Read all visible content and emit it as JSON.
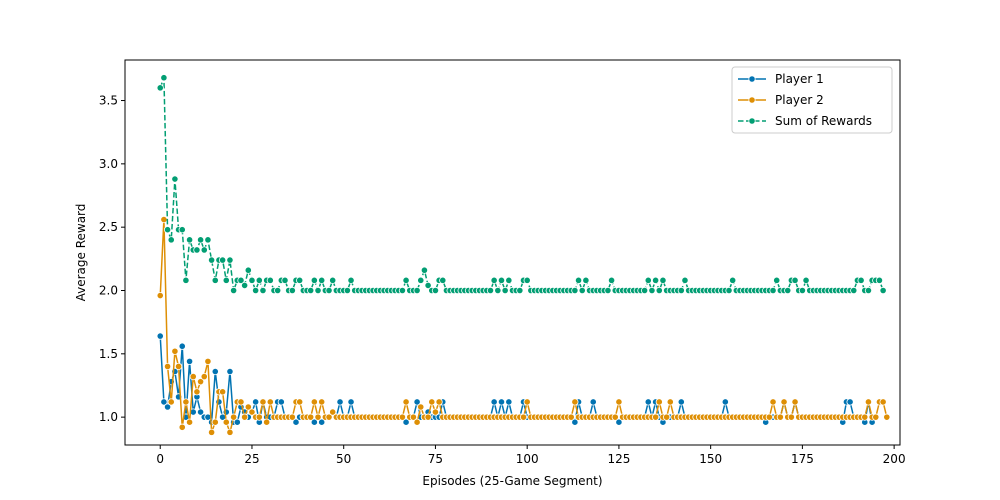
{
  "chart_data": {
    "type": "line",
    "title": "",
    "xlabel": "Episodes (25-Game Segment)",
    "ylabel": "Average Reward",
    "xlim": [
      -9.6,
      201.6
    ],
    "ylim": [
      0.78,
      3.82
    ],
    "x_ticks": [
      0,
      25,
      50,
      75,
      100,
      125,
      150,
      175,
      200
    ],
    "x_tick_labels": [
      "0",
      "25",
      "50",
      "75",
      "100",
      "125",
      "150",
      "175",
      "200"
    ],
    "y_ticks": [
      1.0,
      1.5,
      2.0,
      2.5,
      3.0,
      3.5
    ],
    "y_tick_labels": [
      "1.0",
      "1.5",
      "2.0",
      "2.5",
      "3.0",
      "3.5"
    ],
    "grid": false,
    "legend_position": "top-right",
    "series": [
      {
        "name": "Player 1",
        "color": "#0173b2",
        "linestyle": "solid",
        "marker": "circle",
        "values": [
          1.64,
          1.12,
          1.08,
          1.28,
          1.36,
          1.16,
          1.56,
          1.0,
          1.44,
          1.04,
          1.16,
          1.04,
          1.0,
          1.0,
          0.96,
          1.36,
          1.12,
          1.0,
          1.04,
          1.36,
          0.96,
          0.96,
          1.08,
          1.04,
          1.0,
          1.04,
          1.12,
          0.96,
          1.12,
          1.0,
          1.0,
          1.0,
          1.12,
          1.12,
          1.0,
          1.0,
          1.0,
          0.96,
          1.0,
          1.0,
          1.0,
          1.0,
          0.96,
          1.0,
          0.96,
          1.0,
          1.0,
          1.04,
          1.0,
          1.12,
          1.0,
          1.0,
          1.12,
          1.0,
          1.0,
          1.0,
          1.0,
          1.0,
          1.0,
          1.0,
          1.0,
          1.0,
          1.0,
          1.0,
          1.0,
          1.0,
          1.0,
          0.96,
          1.0,
          1.0,
          1.12,
          1.0,
          1.0,
          1.04,
          1.0,
          1.0,
          1.0,
          1.12,
          1.0,
          1.0,
          1.0,
          1.0,
          1.0,
          1.0,
          1.0,
          1.0,
          1.0,
          1.0,
          1.0,
          1.0,
          1.0,
          1.12,
          1.0,
          1.12,
          1.0,
          1.12,
          1.0,
          1.0,
          1.0,
          1.12,
          1.0,
          1.0,
          1.0,
          1.0,
          1.0,
          1.0,
          1.0,
          1.0,
          1.0,
          1.0,
          1.0,
          1.0,
          1.0,
          0.96,
          1.12,
          1.0,
          1.0,
          1.0,
          1.12,
          1.0,
          1.0,
          1.0,
          1.0,
          1.0,
          1.0,
          0.96,
          1.0,
          1.0,
          1.0,
          1.0,
          1.0,
          1.0,
          1.0,
          1.12,
          1.0,
          1.12,
          1.0,
          0.96,
          1.0,
          1.0,
          1.0,
          1.0,
          1.12,
          1.0,
          1.0,
          1.0,
          1.0,
          1.0,
          1.0,
          1.0,
          1.0,
          1.0,
          1.0,
          1.0,
          1.12,
          1.0,
          1.0,
          1.0,
          1.0,
          1.0,
          1.0,
          1.0,
          1.0,
          1.0,
          1.0,
          0.96,
          1.0,
          1.0,
          1.0,
          1.0,
          1.12,
          1.0,
          1.0,
          1.12,
          1.0,
          1.0,
          1.0,
          1.0,
          1.0,
          1.0,
          1.0,
          1.0,
          1.0,
          1.0,
          1.0,
          1.0,
          0.96,
          1.12,
          1.12,
          1.0,
          1.0,
          1.0,
          0.96,
          1.12,
          0.96,
          1.0
        ]
      },
      {
        "name": "Player 2",
        "color": "#de8f05",
        "linestyle": "solid",
        "marker": "circle",
        "values": [
          1.96,
          2.56,
          1.4,
          1.12,
          1.52,
          1.4,
          0.92,
          1.12,
          0.96,
          1.32,
          1.2,
          1.28,
          1.32,
          1.44,
          0.88,
          0.96,
          1.2,
          1.2,
          0.96,
          0.88,
          1.0,
          1.12,
          1.12,
          1.0,
          1.08,
          1.04,
          1.0,
          1.0,
          1.12,
          0.96,
          1.12,
          1.0,
          1.0,
          1.0,
          1.0,
          1.0,
          1.0,
          1.12,
          1.12,
          1.0,
          1.0,
          1.0,
          1.12,
          1.0,
          1.12,
          1.0,
          1.0,
          1.04,
          1.0,
          1.0,
          1.0,
          1.0,
          1.0,
          1.0,
          1.0,
          1.0,
          1.0,
          1.0,
          1.0,
          1.0,
          1.0,
          1.0,
          1.0,
          1.0,
          1.0,
          1.0,
          1.0,
          1.12,
          1.0,
          1.0,
          0.96,
          1.08,
          1.0,
          1.0,
          1.12,
          1.04,
          1.12,
          1.0,
          1.0,
          1.0,
          1.0,
          1.0,
          1.0,
          1.0,
          1.0,
          1.0,
          1.0,
          1.0,
          1.0,
          1.0,
          1.0,
          1.0,
          1.0,
          1.0,
          1.0,
          1.0,
          1.0,
          1.0,
          1.0,
          1.0,
          1.12,
          1.0,
          1.0,
          1.0,
          1.0,
          1.0,
          1.0,
          1.0,
          1.0,
          1.0,
          1.0,
          1.0,
          1.0,
          1.12,
          1.0,
          1.0,
          1.0,
          1.0,
          1.0,
          1.0,
          1.0,
          1.0,
          1.0,
          1.0,
          1.0,
          1.12,
          1.0,
          1.0,
          1.0,
          1.0,
          1.0,
          1.0,
          1.0,
          1.0,
          1.0,
          1.0,
          1.12,
          1.0,
          1.0,
          1.12,
          1.0,
          1.0,
          1.0,
          1.0,
          1.0,
          1.0,
          1.0,
          1.0,
          1.0,
          1.0,
          1.0,
          1.0,
          1.0,
          1.0,
          1.0,
          1.0,
          1.0,
          1.0,
          1.0,
          1.0,
          1.0,
          1.0,
          1.0,
          1.0,
          1.0,
          1.0,
          1.0,
          1.12,
          1.0,
          1.0,
          1.12,
          1.0,
          1.0,
          1.12,
          1.0,
          1.0,
          1.0,
          1.0,
          1.0,
          1.0,
          1.0,
          1.0,
          1.0,
          1.0,
          1.0,
          1.0,
          1.0,
          1.0,
          1.0,
          1.0,
          1.0,
          1.0,
          1.0,
          1.12,
          1.0,
          1.0,
          1.12,
          1.12,
          1.0
        ]
      },
      {
        "name": "Sum of Rewards",
        "color": "#029e73",
        "linestyle": "dashed",
        "marker": "circle",
        "values": [
          3.6,
          3.68,
          2.48,
          2.4,
          2.88,
          2.48,
          2.48,
          2.08,
          2.4,
          2.32,
          2.32,
          2.4,
          2.32,
          2.4,
          2.24,
          2.08,
          2.24,
          2.24,
          2.08,
          2.24,
          2.0,
          2.08,
          2.08,
          2.04,
          2.16,
          2.08,
          2.0,
          2.08,
          2.0,
          2.08,
          2.08,
          2.0,
          2.0,
          2.08,
          2.08,
          2.0,
          2.0,
          2.08,
          2.08,
          2.0,
          2.0,
          2.0,
          2.08,
          2.0,
          2.08,
          2.0,
          2.0,
          2.08,
          2.0,
          2.0,
          2.0,
          2.0,
          2.08,
          2.0,
          2.0,
          2.0,
          2.0,
          2.0,
          2.0,
          2.0,
          2.0,
          2.0,
          2.0,
          2.0,
          2.0,
          2.0,
          2.0,
          2.08,
          2.0,
          2.0,
          2.0,
          2.08,
          2.16,
          2.04,
          2.0,
          2.0,
          2.08,
          2.08,
          2.0,
          2.0,
          2.0,
          2.0,
          2.0,
          2.0,
          2.0,
          2.0,
          2.0,
          2.0,
          2.0,
          2.0,
          2.0,
          2.08,
          2.0,
          2.08,
          2.0,
          2.08,
          2.0,
          2.0,
          2.0,
          2.08,
          2.08,
          2.0,
          2.0,
          2.0,
          2.0,
          2.0,
          2.0,
          2.0,
          2.0,
          2.0,
          2.0,
          2.0,
          2.0,
          2.0,
          2.08,
          2.0,
          2.08,
          2.0,
          2.0,
          2.0,
          2.0,
          2.0,
          2.0,
          2.08,
          2.0,
          2.0,
          2.0,
          2.0,
          2.0,
          2.0,
          2.0,
          2.0,
          2.0,
          2.08,
          2.0,
          2.08,
          2.0,
          2.08,
          2.0,
          2.0,
          2.0,
          2.0,
          2.0,
          2.08,
          2.0,
          2.0,
          2.0,
          2.0,
          2.0,
          2.0,
          2.0,
          2.0,
          2.0,
          2.0,
          2.0,
          2.0,
          2.08,
          2.0,
          2.0,
          2.0,
          2.0,
          2.0,
          2.0,
          2.0,
          2.0,
          2.0,
          2.0,
          2.0,
          2.08,
          2.0,
          2.0,
          2.0,
          2.08,
          2.08,
          2.0,
          2.0,
          2.08,
          2.0,
          2.0,
          2.0,
          2.0,
          2.0,
          2.0,
          2.0,
          2.0,
          2.0,
          2.0,
          2.0,
          2.0,
          2.0,
          2.08,
          2.08,
          2.0,
          2.0,
          2.08,
          2.08,
          2.08,
          2.0
        ]
      }
    ]
  }
}
